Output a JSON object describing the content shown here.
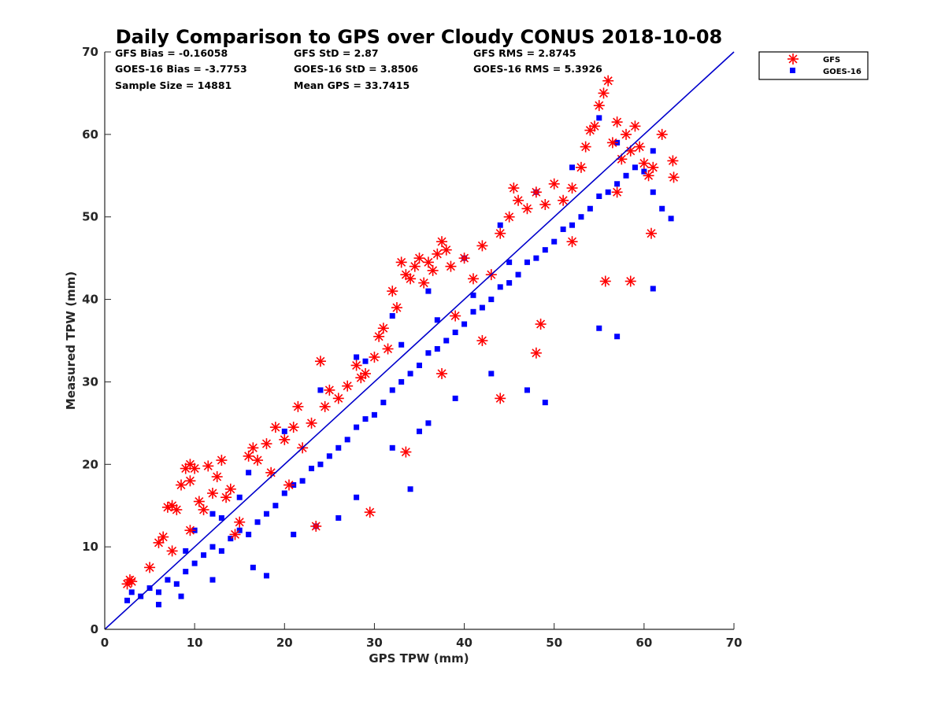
{
  "chart_data": {
    "type": "scatter",
    "title": "Daily Comparison to GPS over Cloudy CONUS 2018-10-08",
    "xlabel": "GPS TPW (mm)",
    "ylabel": "Measured TPW (mm)",
    "xlim": [
      0,
      70
    ],
    "ylim": [
      0,
      70
    ],
    "xticks": [
      "0",
      "10",
      "20",
      "30",
      "40",
      "50",
      "60",
      "70"
    ],
    "yticks": [
      "0",
      "10",
      "20",
      "30",
      "40",
      "50",
      "60",
      "70"
    ],
    "grid": false,
    "legend_position": "outside top-right",
    "stats": [
      "GFS Bias = -0.16058",
      "GFS StD = 2.87",
      "GFS RMS = 2.8745",
      "GOES-16 Bias = -3.7753",
      "GOES-16 StD = 3.8506",
      "GOES-16 RMS = 5.3926",
      "Sample Size = 14881",
      "Mean GPS = 33.7415"
    ],
    "reference_line": {
      "type": "one-to-one",
      "from": [
        0,
        0
      ],
      "to": [
        70,
        70
      ],
      "color": "#0000cc"
    },
    "series": [
      {
        "name": "GFS",
        "marker": "asterisk",
        "color": "#ff0000",
        "points": [
          [
            2.5,
            5.5
          ],
          [
            2.8,
            6.0
          ],
          [
            3.0,
            5.8
          ],
          [
            5.0,
            7.5
          ],
          [
            6.0,
            10.5
          ],
          [
            6.5,
            11.2
          ],
          [
            7.0,
            14.8
          ],
          [
            7.5,
            15.0
          ],
          [
            8.0,
            14.5
          ],
          [
            8.5,
            17.5
          ],
          [
            9.0,
            19.5
          ],
          [
            9.5,
            20.0
          ],
          [
            9.5,
            18.0
          ],
          [
            10.0,
            19.5
          ],
          [
            10.5,
            15.5
          ],
          [
            11.0,
            14.5
          ],
          [
            11.5,
            19.8
          ],
          [
            12.0,
            16.5
          ],
          [
            12.5,
            18.5
          ],
          [
            13.0,
            20.5
          ],
          [
            13.5,
            16.0
          ],
          [
            14.0,
            17.0
          ],
          [
            15.0,
            13.0
          ],
          [
            16.0,
            21.0
          ],
          [
            16.5,
            22.0
          ],
          [
            17.0,
            20.5
          ],
          [
            18.0,
            22.5
          ],
          [
            18.5,
            19.0
          ],
          [
            19.0,
            24.5
          ],
          [
            20.0,
            23.0
          ],
          [
            21.0,
            24.5
          ],
          [
            21.5,
            27.0
          ],
          [
            22.0,
            22.0
          ],
          [
            23.0,
            25.0
          ],
          [
            23.5,
            12.5
          ],
          [
            24.0,
            32.5
          ],
          [
            24.5,
            27.0
          ],
          [
            25.0,
            29.0
          ],
          [
            26.0,
            28.0
          ],
          [
            27.0,
            29.5
          ],
          [
            28.0,
            32.0
          ],
          [
            28.5,
            30.5
          ],
          [
            29.5,
            14.2
          ],
          [
            29.0,
            31.0
          ],
          [
            30.0,
            33.0
          ],
          [
            30.5,
            35.5
          ],
          [
            31.0,
            36.5
          ],
          [
            31.5,
            34.0
          ],
          [
            32.0,
            41.0
          ],
          [
            32.5,
            39.0
          ],
          [
            33.0,
            44.5
          ],
          [
            33.5,
            43.0
          ],
          [
            34.0,
            42.5
          ],
          [
            34.5,
            44.0
          ],
          [
            35.0,
            45.0
          ],
          [
            35.5,
            42.0
          ],
          [
            36.0,
            44.5
          ],
          [
            36.5,
            43.5
          ],
          [
            37.0,
            45.5
          ],
          [
            37.5,
            47.0
          ],
          [
            38.0,
            46.0
          ],
          [
            38.5,
            44.0
          ],
          [
            39.0,
            38.0
          ],
          [
            40.0,
            45.0
          ],
          [
            41.0,
            42.5
          ],
          [
            42.0,
            46.5
          ],
          [
            43.0,
            43.0
          ],
          [
            44.0,
            48.0
          ],
          [
            45.0,
            50.0
          ],
          [
            45.5,
            53.5
          ],
          [
            46.0,
            52.0
          ],
          [
            47.0,
            51.0
          ],
          [
            48.0,
            53.0
          ],
          [
            48.5,
            37.0
          ],
          [
            49.0,
            51.5
          ],
          [
            50.0,
            54.0
          ],
          [
            51.0,
            52.0
          ],
          [
            52.0,
            53.5
          ],
          [
            53.0,
            56.0
          ],
          [
            53.5,
            58.5
          ],
          [
            54.0,
            60.5
          ],
          [
            54.5,
            61.0
          ],
          [
            55.0,
            63.5
          ],
          [
            55.5,
            65.0
          ],
          [
            56.0,
            66.5
          ],
          [
            56.5,
            59.0
          ],
          [
            57.0,
            61.5
          ],
          [
            57.5,
            57.0
          ],
          [
            58.0,
            60.0
          ],
          [
            58.5,
            58.0
          ],
          [
            59.0,
            61.0
          ],
          [
            59.5,
            58.5
          ],
          [
            60.0,
            56.5
          ],
          [
            60.5,
            55.0
          ],
          [
            61.0,
            56.0
          ],
          [
            62.0,
            60.0
          ],
          [
            63.2,
            56.8
          ],
          [
            63.3,
            54.8
          ],
          [
            60.8,
            48.0
          ],
          [
            58.5,
            42.2
          ],
          [
            55.7,
            42.2
          ],
          [
            48.0,
            33.5
          ],
          [
            42.0,
            35.0
          ],
          [
            37.5,
            31.0
          ],
          [
            33.5,
            21.5
          ],
          [
            20.5,
            17.5
          ],
          [
            14.5,
            11.5
          ],
          [
            9.5,
            12.0
          ],
          [
            7.5,
            9.5
          ],
          [
            44.0,
            28.0
          ],
          [
            52.0,
            47.0
          ],
          [
            57.0,
            53.0
          ]
        ]
      },
      {
        "name": "GOES-16",
        "marker": "square",
        "color": "#0000ff",
        "points": [
          [
            2.5,
            3.5
          ],
          [
            3.0,
            4.5
          ],
          [
            4.0,
            4.0
          ],
          [
            5.0,
            5.0
          ],
          [
            6.0,
            4.5
          ],
          [
            7.0,
            6.0
          ],
          [
            8.0,
            5.5
          ],
          [
            9.0,
            7.0
          ],
          [
            10.0,
            8.0
          ],
          [
            11.0,
            9.0
          ],
          [
            12.0,
            10.0
          ],
          [
            13.0,
            9.5
          ],
          [
            14.0,
            11.0
          ],
          [
            15.0,
            12.0
          ],
          [
            16.0,
            11.5
          ],
          [
            17.0,
            13.0
          ],
          [
            18.0,
            14.0
          ],
          [
            19.0,
            15.0
          ],
          [
            20.0,
            16.5
          ],
          [
            21.0,
            17.5
          ],
          [
            22.0,
            18.0
          ],
          [
            23.0,
            19.5
          ],
          [
            24.0,
            20.0
          ],
          [
            25.0,
            21.0
          ],
          [
            26.0,
            22.0
          ],
          [
            27.0,
            23.0
          ],
          [
            28.0,
            24.5
          ],
          [
            29.0,
            25.5
          ],
          [
            30.0,
            26.0
          ],
          [
            31.0,
            27.5
          ],
          [
            32.0,
            29.0
          ],
          [
            33.0,
            30.0
          ],
          [
            34.0,
            31.0
          ],
          [
            35.0,
            32.0
          ],
          [
            36.0,
            33.5
          ],
          [
            37.0,
            34.0
          ],
          [
            38.0,
            35.0
          ],
          [
            39.0,
            36.0
          ],
          [
            40.0,
            37.0
          ],
          [
            41.0,
            38.5
          ],
          [
            42.0,
            39.0
          ],
          [
            43.0,
            40.0
          ],
          [
            44.0,
            41.5
          ],
          [
            45.0,
            42.0
          ],
          [
            46.0,
            43.0
          ],
          [
            47.0,
            44.5
          ],
          [
            48.0,
            45.0
          ],
          [
            49.0,
            46.0
          ],
          [
            50.0,
            47.0
          ],
          [
            51.0,
            48.5
          ],
          [
            52.0,
            49.0
          ],
          [
            53.0,
            50.0
          ],
          [
            54.0,
            51.0
          ],
          [
            55.0,
            52.5
          ],
          [
            56.0,
            53.0
          ],
          [
            57.0,
            54.0
          ],
          [
            58.0,
            55.0
          ],
          [
            59.0,
            56.0
          ],
          [
            60.0,
            55.5
          ],
          [
            61.0,
            53.0
          ],
          [
            62.0,
            51.0
          ],
          [
            63.0,
            49.8
          ],
          [
            61.0,
            41.3
          ],
          [
            57.0,
            35.5
          ],
          [
            55.0,
            36.5
          ],
          [
            49.0,
            27.5
          ],
          [
            47.0,
            29.0
          ],
          [
            43.0,
            31.0
          ],
          [
            39.0,
            28.0
          ],
          [
            36.0,
            25.0
          ],
          [
            35.0,
            24.0
          ],
          [
            34.0,
            17.0
          ],
          [
            32.0,
            22.0
          ],
          [
            28.0,
            16.0
          ],
          [
            26.0,
            13.5
          ],
          [
            23.5,
            12.5
          ],
          [
            21.0,
            11.5
          ],
          [
            18.0,
            6.5
          ],
          [
            16.5,
            7.5
          ],
          [
            12.0,
            6.0
          ],
          [
            8.5,
            4.0
          ],
          [
            6.0,
            3.0
          ],
          [
            10.0,
            12.0
          ],
          [
            12.0,
            14.0
          ],
          [
            16.0,
            19.0
          ],
          [
            20.0,
            24.0
          ],
          [
            24.0,
            29.0
          ],
          [
            28.0,
            33.0
          ],
          [
            32.0,
            38.0
          ],
          [
            36.0,
            41.0
          ],
          [
            40.0,
            45.0
          ],
          [
            44.0,
            49.0
          ],
          [
            48.0,
            53.0
          ],
          [
            52.0,
            56.0
          ],
          [
            55.0,
            62.0
          ],
          [
            57.0,
            59.0
          ],
          [
            61.0,
            58.0
          ],
          [
            29.0,
            32.5
          ],
          [
            33.0,
            34.5
          ],
          [
            37.0,
            37.5
          ],
          [
            41.0,
            40.5
          ],
          [
            45.0,
            44.5
          ],
          [
            13.0,
            13.5
          ],
          [
            15.0,
            16.0
          ],
          [
            9.0,
            9.5
          ]
        ]
      }
    ]
  }
}
